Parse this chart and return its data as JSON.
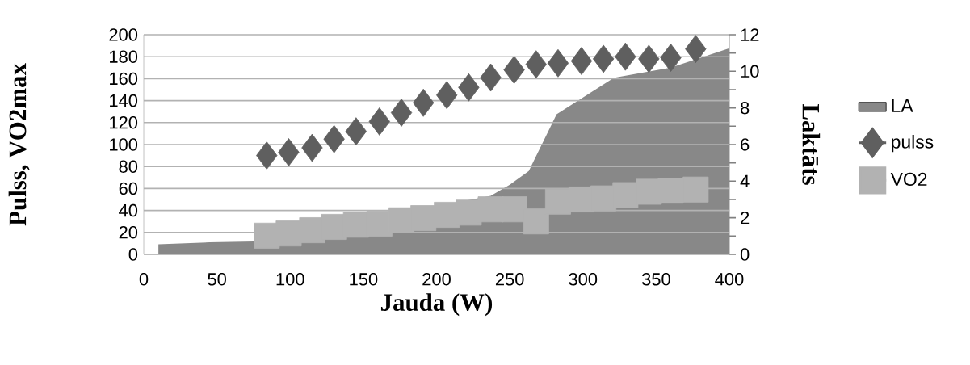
{
  "chart_data": {
    "type": "scatter",
    "xlabel": "Jauda (W)",
    "ylabel": "Pulss, VO2max",
    "y2label": "Laktāts",
    "xlim": [
      0,
      400
    ],
    "xticks": [
      0,
      50,
      100,
      150,
      200,
      250,
      300,
      350,
      400
    ],
    "ylim": [
      0,
      200
    ],
    "yticks": [
      0,
      20,
      40,
      60,
      80,
      100,
      120,
      140,
      160,
      180,
      200
    ],
    "y2lim": [
      0,
      12
    ],
    "y2ticks": [
      0,
      {
        "value": 1,
        "label": null
      },
      2,
      {
        "value": 3,
        "label": null
      },
      4,
      {
        "value": 5,
        "label": null
      },
      6,
      {
        "value": 7,
        "label": null
      },
      8,
      {
        "value": 9,
        "label": null
      },
      10,
      {
        "value": 11,
        "label": null
      },
      12
    ],
    "grid": "y",
    "legend": "right",
    "series": [
      {
        "name": "LA",
        "type": "area",
        "axis": "y2",
        "color": "#888888",
        "x": [
          10,
          45,
          75,
          120,
          170,
          215,
          237,
          250,
          263,
          282,
          321,
          360,
          376,
          400
        ],
        "values": [
          0.55,
          0.66,
          0.7,
          null,
          null,
          null,
          3.2,
          3.8,
          4.55,
          7.65,
          9.64,
          10.2,
          null,
          11.26
        ]
      },
      {
        "name": "pulss",
        "marker": "diamond",
        "color": "#5f5f5f",
        "x": [
          84,
          99,
          115,
          130,
          145,
          161,
          176,
          191,
          207,
          222,
          237,
          253,
          268,
          283,
          299,
          314,
          329,
          345,
          360,
          377
        ],
        "values": [
          90,
          93,
          97,
          105,
          112,
          121,
          129,
          138,
          145,
          152,
          161,
          168,
          173,
          174,
          176,
          178,
          180,
          178,
          179,
          187
        ]
      },
      {
        "name": "VO2",
        "marker": "square",
        "color": "#b2b2b2",
        "x": [
          84,
          99,
          115,
          130,
          145,
          161,
          176,
          191,
          207,
          222,
          237,
          253,
          268,
          283,
          299,
          314,
          329,
          345,
          360,
          377
        ],
        "values": [
          17,
          19,
          22,
          25,
          27,
          28,
          31,
          33,
          36,
          38,
          41,
          41,
          30,
          48,
          50,
          51,
          54,
          57,
          58,
          59
        ]
      }
    ]
  }
}
